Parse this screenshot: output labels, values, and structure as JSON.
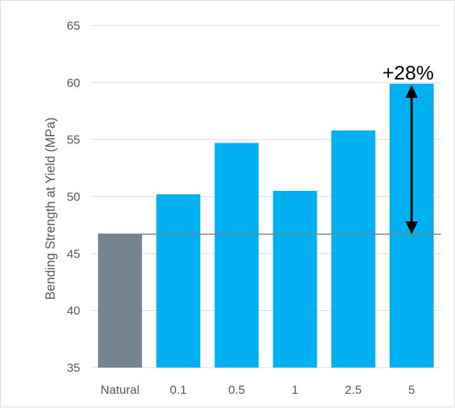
{
  "chart_data": {
    "type": "bar",
    "categories": [
      "Natural",
      "0.1",
      "0.5",
      "1",
      "2.5",
      "5"
    ],
    "values": [
      46.7,
      50.2,
      54.7,
      50.5,
      55.8,
      59.9
    ],
    "title": "",
    "xlabel": "",
    "ylabel": "Bending Strength at Yield (MPa)",
    "ylim": [
      35,
      65
    ],
    "yticks": [
      35,
      40,
      45,
      50,
      55,
      60,
      65
    ],
    "grid": true,
    "legend": "none",
    "colors": {
      "baseline_bar": "#76848f",
      "treated_bar": "#00b0f0",
      "gridline": "#d9d9d9",
      "reference_line": "#7f7f7f",
      "annotation": "#000000"
    },
    "annotation": {
      "text": "+28%",
      "category": "5",
      "from_value": 46.7,
      "to_value": 59.9
    },
    "reference_line_value": 46.7
  }
}
